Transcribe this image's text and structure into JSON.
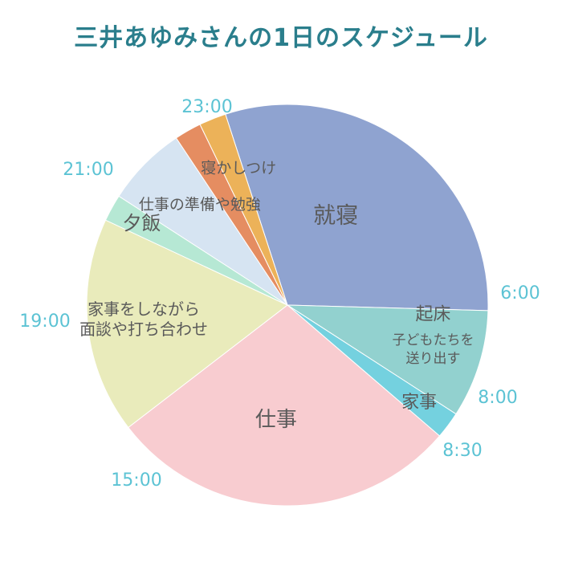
{
  "title": "三井あゆみさんの1日のスケジュール",
  "chart_data": {
    "type": "pie",
    "unit": "hours",
    "start_clock": "23:00",
    "slices": [
      {
        "id": "shushin",
        "label": "就寝",
        "hours": 7,
        "color": "#8fa3d0",
        "label_size": 28
      },
      {
        "id": "kisho",
        "label": "起床",
        "sublabel": [
          "子どもたちを",
          "送り出す"
        ],
        "hours": 2,
        "color": "#92d1cf",
        "label_size": 22,
        "sublabel_size": 17
      },
      {
        "id": "kaji",
        "label": "家事",
        "hours": 0.5,
        "color": "#74d1df",
        "label_size": 22
      },
      {
        "id": "shigoto",
        "label": "仕事",
        "hours": 6.5,
        "color": "#f8ccd0",
        "label_size": 26
      },
      {
        "id": "mendan",
        "label": [
          "家事をしながら",
          "面談や打ち合わせ"
        ],
        "hours": 4,
        "color": "#e9ebbb",
        "label_size": 20
      },
      {
        "id": "yuhan",
        "label": "夕飯",
        "hours": 0.5,
        "color": "#b6e8d4",
        "label_size": 24
      },
      {
        "id": "junbi",
        "label": "仕事の準備や勉強",
        "hours": 1.5,
        "color": "#d6e4f2",
        "label_size": 19
      },
      {
        "id": "nekashitsuke",
        "label": "寝かしつけ",
        "hours": 0.5,
        "color": "#e58d61",
        "label_size": 19
      },
      {
        "id": "extra",
        "label": "",
        "hours": 0.5,
        "color": "#ecb259"
      }
    ],
    "time_labels": [
      "23:00",
      "6:00",
      "8:00",
      "8:30",
      "15:00",
      "19:00",
      "21:00"
    ]
  }
}
